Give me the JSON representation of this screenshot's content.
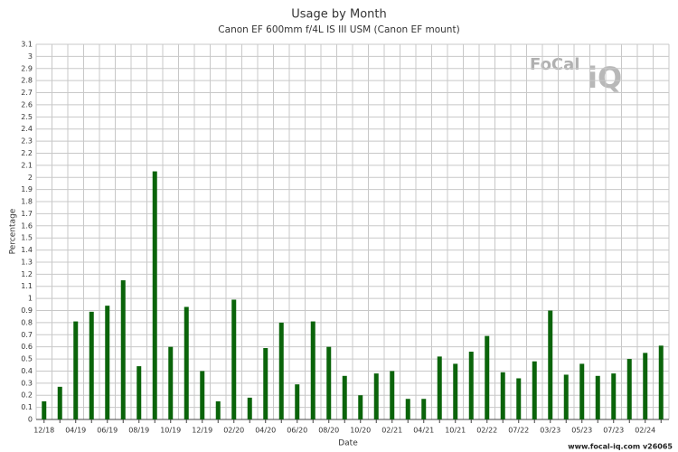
{
  "chart_data": {
    "type": "bar",
    "title": "Usage by Month",
    "subtitle": "Canon EF 600mm f/4L IS III USM (Canon EF mount)",
    "x_label": "Date",
    "y_label": "Percentage",
    "categories": [
      "12/18",
      null,
      "04/19",
      null,
      "06/19",
      null,
      "08/19",
      null,
      "10/19",
      null,
      "12/19",
      null,
      "02/20",
      null,
      "04/20",
      null,
      "06/20",
      null,
      "08/20",
      null,
      "10/20",
      null,
      "02/21",
      null,
      "04/21",
      null,
      "10/21",
      null,
      "02/22",
      null,
      "07/22",
      null,
      "03/23",
      null,
      "05/23",
      null,
      "07/23",
      null,
      "02/24",
      null
    ],
    "values": [
      0.15,
      0.27,
      0.81,
      0.89,
      0.94,
      1.15,
      0.44,
      2.05,
      0.6,
      0.93,
      0.4,
      0.15,
      0.99,
      0.18,
      0.59,
      0.8,
      0.29,
      0.81,
      0.6,
      0.36,
      0.2,
      0.38,
      0.4,
      0.17,
      0.17,
      0.52,
      0.46,
      0.56,
      0.69,
      0.39,
      0.34,
      0.48,
      0.9,
      0.37,
      0.46,
      0.36,
      0.38,
      0.5,
      0.55,
      0.61
    ],
    "color": "#0a640a",
    "ylim": [
      0,
      3.1
    ],
    "yticks": [
      0,
      0.1,
      0.2,
      0.3,
      0.4,
      0.5,
      0.6,
      0.7,
      0.8,
      0.9,
      1,
      1.1,
      1.2,
      1.3,
      1.4,
      1.5,
      1.6,
      1.7,
      1.8,
      1.9,
      2,
      2.1,
      2.2,
      2.3,
      2.4,
      2.5,
      2.6,
      2.7,
      2.8,
      2.9,
      3,
      3.1
    ],
    "grid": true,
    "logo": [
      "FoCal",
      "iQ"
    ],
    "footer": "www.focal-iq.com  v26065"
  }
}
